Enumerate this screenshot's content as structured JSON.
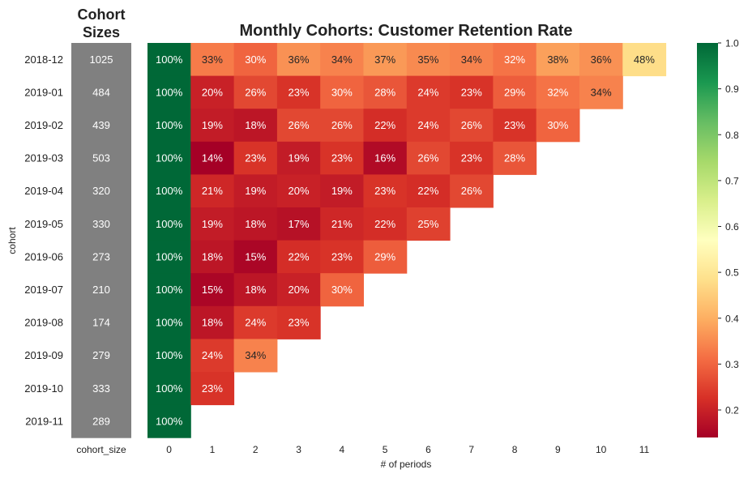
{
  "left_panel_title_line1": "Cohort",
  "left_panel_title_line2": "Sizes",
  "chart_data": {
    "type": "heatmap",
    "title": "Monthly Cohorts: Customer Retention Rate",
    "xlabel": "# of periods",
    "ylabel": "cohort",
    "size_column_label": "cohort_size",
    "colormap": "RdYlGn",
    "vmin": 0.14,
    "vmax": 1.0,
    "colorbar_ticks": [
      0.2,
      0.3,
      0.4,
      0.5,
      0.6,
      0.7,
      0.8,
      0.9,
      1.0
    ],
    "colorbar_tick_labels": [
      "0.2",
      "0.3",
      "0.4",
      "0.5",
      "0.6",
      "0.7",
      "0.8",
      "0.9",
      "1.0"
    ],
    "size_cell_color": "#808080",
    "periods": [
      "0",
      "1",
      "2",
      "3",
      "4",
      "5",
      "6",
      "7",
      "8",
      "9",
      "10",
      "11"
    ],
    "cohorts": [
      "2018-12",
      "2019-01",
      "2019-02",
      "2019-03",
      "2019-04",
      "2019-05",
      "2019-06",
      "2019-07",
      "2019-08",
      "2019-09",
      "2019-10",
      "2019-11"
    ],
    "cohort_sizes": [
      1025,
      484,
      439,
      503,
      320,
      330,
      273,
      210,
      174,
      279,
      333,
      289
    ],
    "retention": [
      [
        1.0,
        0.33,
        0.3,
        0.36,
        0.34,
        0.37,
        0.35,
        0.34,
        0.32,
        0.38,
        0.36,
        0.48
      ],
      [
        1.0,
        0.2,
        0.26,
        0.23,
        0.3,
        0.28,
        0.24,
        0.23,
        0.29,
        0.32,
        0.34
      ],
      [
        1.0,
        0.19,
        0.18,
        0.26,
        0.26,
        0.22,
        0.24,
        0.26,
        0.23,
        0.3
      ],
      [
        1.0,
        0.14,
        0.23,
        0.19,
        0.23,
        0.16,
        0.26,
        0.23,
        0.28
      ],
      [
        1.0,
        0.21,
        0.19,
        0.2,
        0.19,
        0.23,
        0.22,
        0.26
      ],
      [
        1.0,
        0.19,
        0.18,
        0.17,
        0.21,
        0.22,
        0.25
      ],
      [
        1.0,
        0.18,
        0.15,
        0.22,
        0.23,
        0.29
      ],
      [
        1.0,
        0.15,
        0.18,
        0.2,
        0.3
      ],
      [
        1.0,
        0.18,
        0.24,
        0.23
      ],
      [
        1.0,
        0.24,
        0.34
      ],
      [
        1.0,
        0.23
      ],
      [
        1.0
      ]
    ]
  }
}
